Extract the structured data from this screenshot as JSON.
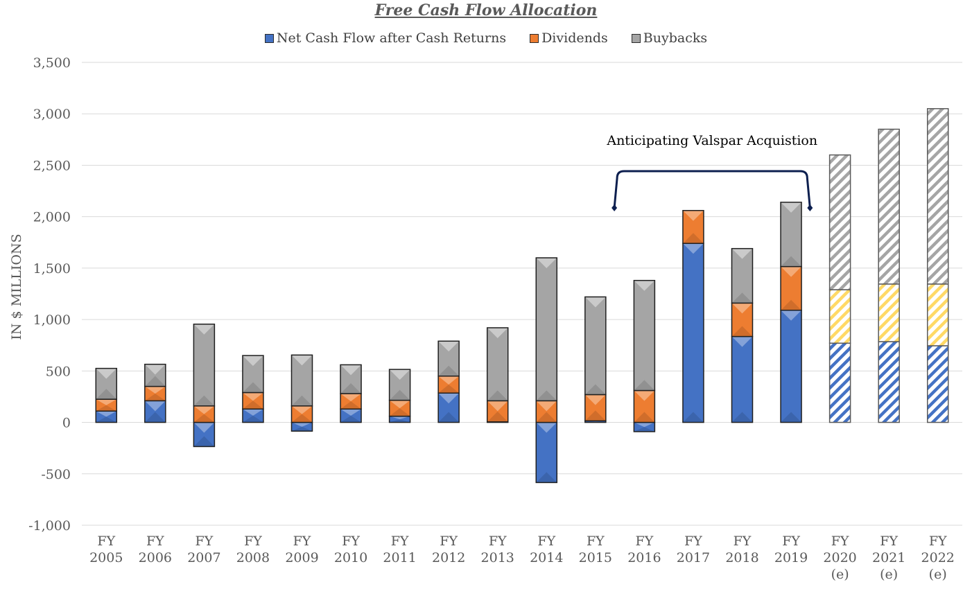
{
  "chart_data": {
    "type": "bar",
    "stacked": true,
    "title": "Free Cash Flow Allocation",
    "ylabel": "IN $ MILLIONS",
    "xlabel": "",
    "ylim": [
      -1000,
      3500
    ],
    "yticks": [
      3500,
      3000,
      2500,
      2000,
      1500,
      1000,
      500,
      0,
      -500,
      -1000
    ],
    "ytick_labels": [
      "3,500",
      "3,000",
      "2,500",
      "2,000",
      "1,500",
      "1,000",
      "500",
      "0",
      "-500",
      "-1,000"
    ],
    "categories": [
      [
        "FY",
        "2005"
      ],
      [
        "FY",
        "2006"
      ],
      [
        "FY",
        "2007"
      ],
      [
        "FY",
        "2008"
      ],
      [
        "FY",
        "2009"
      ],
      [
        "FY",
        "2010"
      ],
      [
        "FY",
        "2011"
      ],
      [
        "FY",
        "2012"
      ],
      [
        "FY",
        "2013"
      ],
      [
        "FY",
        "2014"
      ],
      [
        "FY",
        "2015"
      ],
      [
        "FY",
        "2016"
      ],
      [
        "FY",
        "2017"
      ],
      [
        "FY",
        "2018"
      ],
      [
        "FY",
        "2019"
      ],
      [
        "FY",
        "2020",
        "(e)"
      ],
      [
        "FY",
        "2021",
        "(e)"
      ],
      [
        "FY",
        "2022",
        "(e)"
      ]
    ],
    "estimated": [
      false,
      false,
      false,
      false,
      false,
      false,
      false,
      false,
      false,
      false,
      false,
      false,
      false,
      false,
      false,
      true,
      true,
      true
    ],
    "series": [
      {
        "name": "Net Cash Flow after Cash Returns",
        "color": "#4472c4",
        "values": [
          110,
          210,
          -235,
          130,
          -85,
          130,
          60,
          285,
          5,
          -585,
          15,
          -90,
          1740,
          835,
          1090,
          770,
          785,
          745
        ]
      },
      {
        "name": "Dividends",
        "color": "#ed7d31",
        "values": [
          115,
          140,
          160,
          160,
          160,
          150,
          155,
          165,
          205,
          210,
          255,
          310,
          320,
          325,
          425,
          520,
          560,
          600
        ]
      },
      {
        "name": "Buybacks",
        "color": "#a5a5a5",
        "values": [
          300,
          215,
          795,
          360,
          495,
          280,
          300,
          340,
          710,
          1390,
          950,
          1070,
          0,
          530,
          625,
          1310,
          1505,
          1705
        ]
      }
    ],
    "estimate_dividend_color": "#ffd966",
    "annotation": {
      "text": "Anticipating Valspar Acquistion",
      "from": "FY 2016",
      "to": "FY 2019"
    },
    "grid": true,
    "legend": "top-center"
  }
}
